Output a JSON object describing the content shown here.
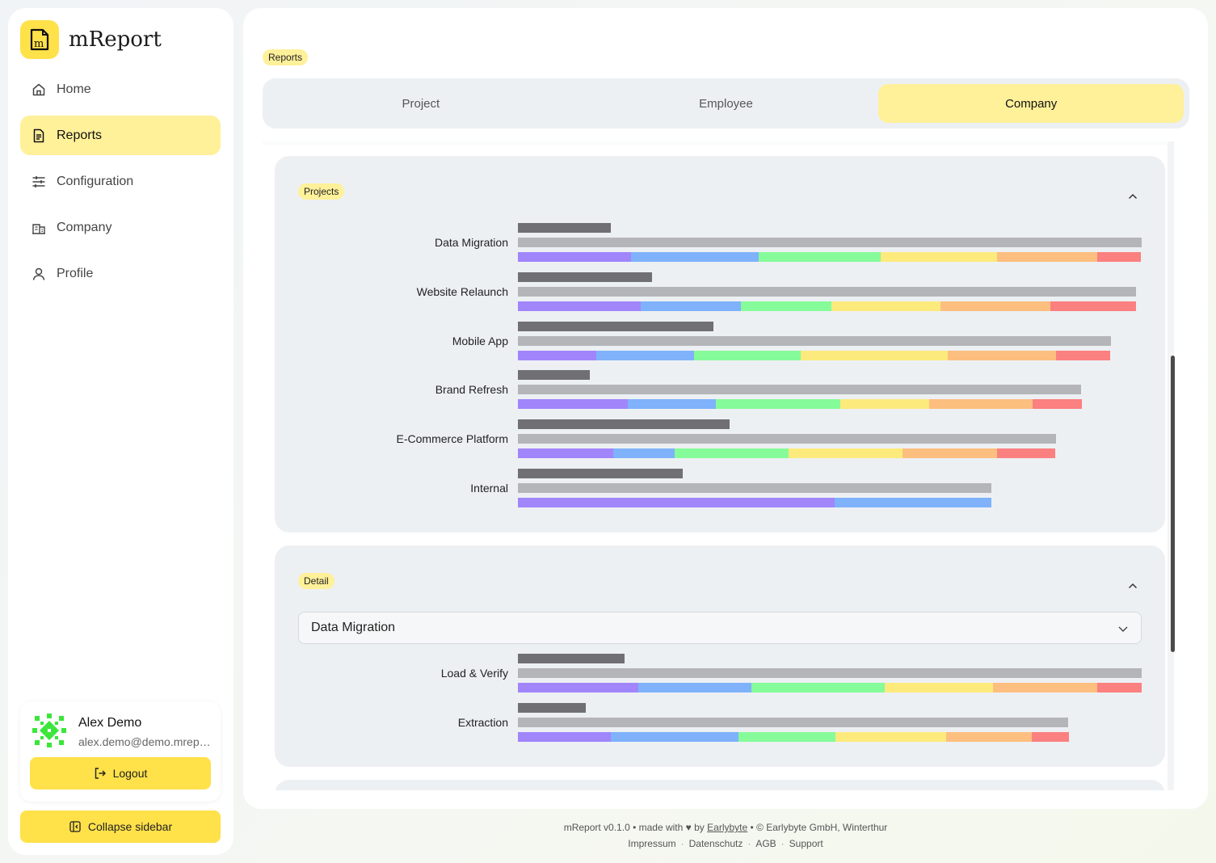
{
  "app": {
    "name": "mReport"
  },
  "sidebar": {
    "items": [
      {
        "label": "Home",
        "icon": "home-icon",
        "active": false
      },
      {
        "label": "Reports",
        "icon": "report-icon",
        "active": true
      },
      {
        "label": "Configuration",
        "icon": "sliders-icon",
        "active": false
      },
      {
        "label": "Company",
        "icon": "building-icon",
        "active": false
      },
      {
        "label": "Profile",
        "icon": "user-icon",
        "active": false
      }
    ],
    "user": {
      "name": "Alex Demo",
      "email": "alex.demo@demo.mreport.ch"
    },
    "logout_label": "Logout",
    "collapse_label": "Collapse sidebar"
  },
  "main": {
    "page_badge": "Reports",
    "tabs": [
      {
        "label": "Project",
        "active": false
      },
      {
        "label": "Employee",
        "active": false
      },
      {
        "label": "Company",
        "active": true
      }
    ],
    "projects_card": {
      "badge": "Projects",
      "rows": [
        {
          "label": "Data Migration",
          "top": 0.149,
          "mid": 1.0,
          "segments": [
            0.181,
            0.205,
            0.195,
            0.186,
            0.16,
            0.07
          ]
        },
        {
          "label": "Website Relaunch",
          "top": 0.215,
          "mid": 0.991,
          "segments": [
            0.197,
            0.161,
            0.145,
            0.175,
            0.176,
            0.137
          ]
        },
        {
          "label": "Mobile App",
          "top": 0.313,
          "mid": 0.951,
          "segments": [
            0.126,
            0.157,
            0.171,
            0.236,
            0.174,
            0.087
          ]
        },
        {
          "label": "Brand Refresh",
          "top": 0.115,
          "mid": 0.903,
          "segments": [
            0.176,
            0.141,
            0.199,
            0.142,
            0.166,
            0.079
          ]
        },
        {
          "label": "E-Commerce Platform",
          "top": 0.339,
          "mid": 0.863,
          "segments": [
            0.153,
            0.099,
            0.183,
            0.183,
            0.152,
            0.093
          ]
        },
        {
          "label": "Internal",
          "top": 0.264,
          "mid": 0.759,
          "segments": [
            0.508,
            0.251,
            0,
            0,
            0,
            0
          ]
        }
      ]
    },
    "detail_card": {
      "badge": "Detail",
      "selected_project": "Data Migration",
      "rows": [
        {
          "label": "Load & Verify",
          "top": 0.171,
          "mid": 1.0,
          "segments": [
            0.193,
            0.181,
            0.214,
            0.174,
            0.167,
            0.071
          ]
        },
        {
          "label": "Extraction",
          "top": 0.109,
          "mid": 0.882,
          "segments": [
            0.149,
            0.205,
            0.155,
            0.177,
            0.137,
            0.059
          ]
        }
      ]
    },
    "segment_colors": [
      "#a185fb",
      "#7fb2fb",
      "#86fb9a",
      "#fdea7c",
      "#fdbf7f",
      "#fb8080"
    ]
  },
  "footer": {
    "prefix": "mReport v0.1.0 • made with",
    "heart": "♥",
    "by": "by",
    "brand_link": "Earlybyte",
    "suffix": "• © Earlybyte GmbH, Winterthur",
    "links": [
      "Impressum",
      "Datenschutz",
      "AGB",
      "Support"
    ]
  }
}
